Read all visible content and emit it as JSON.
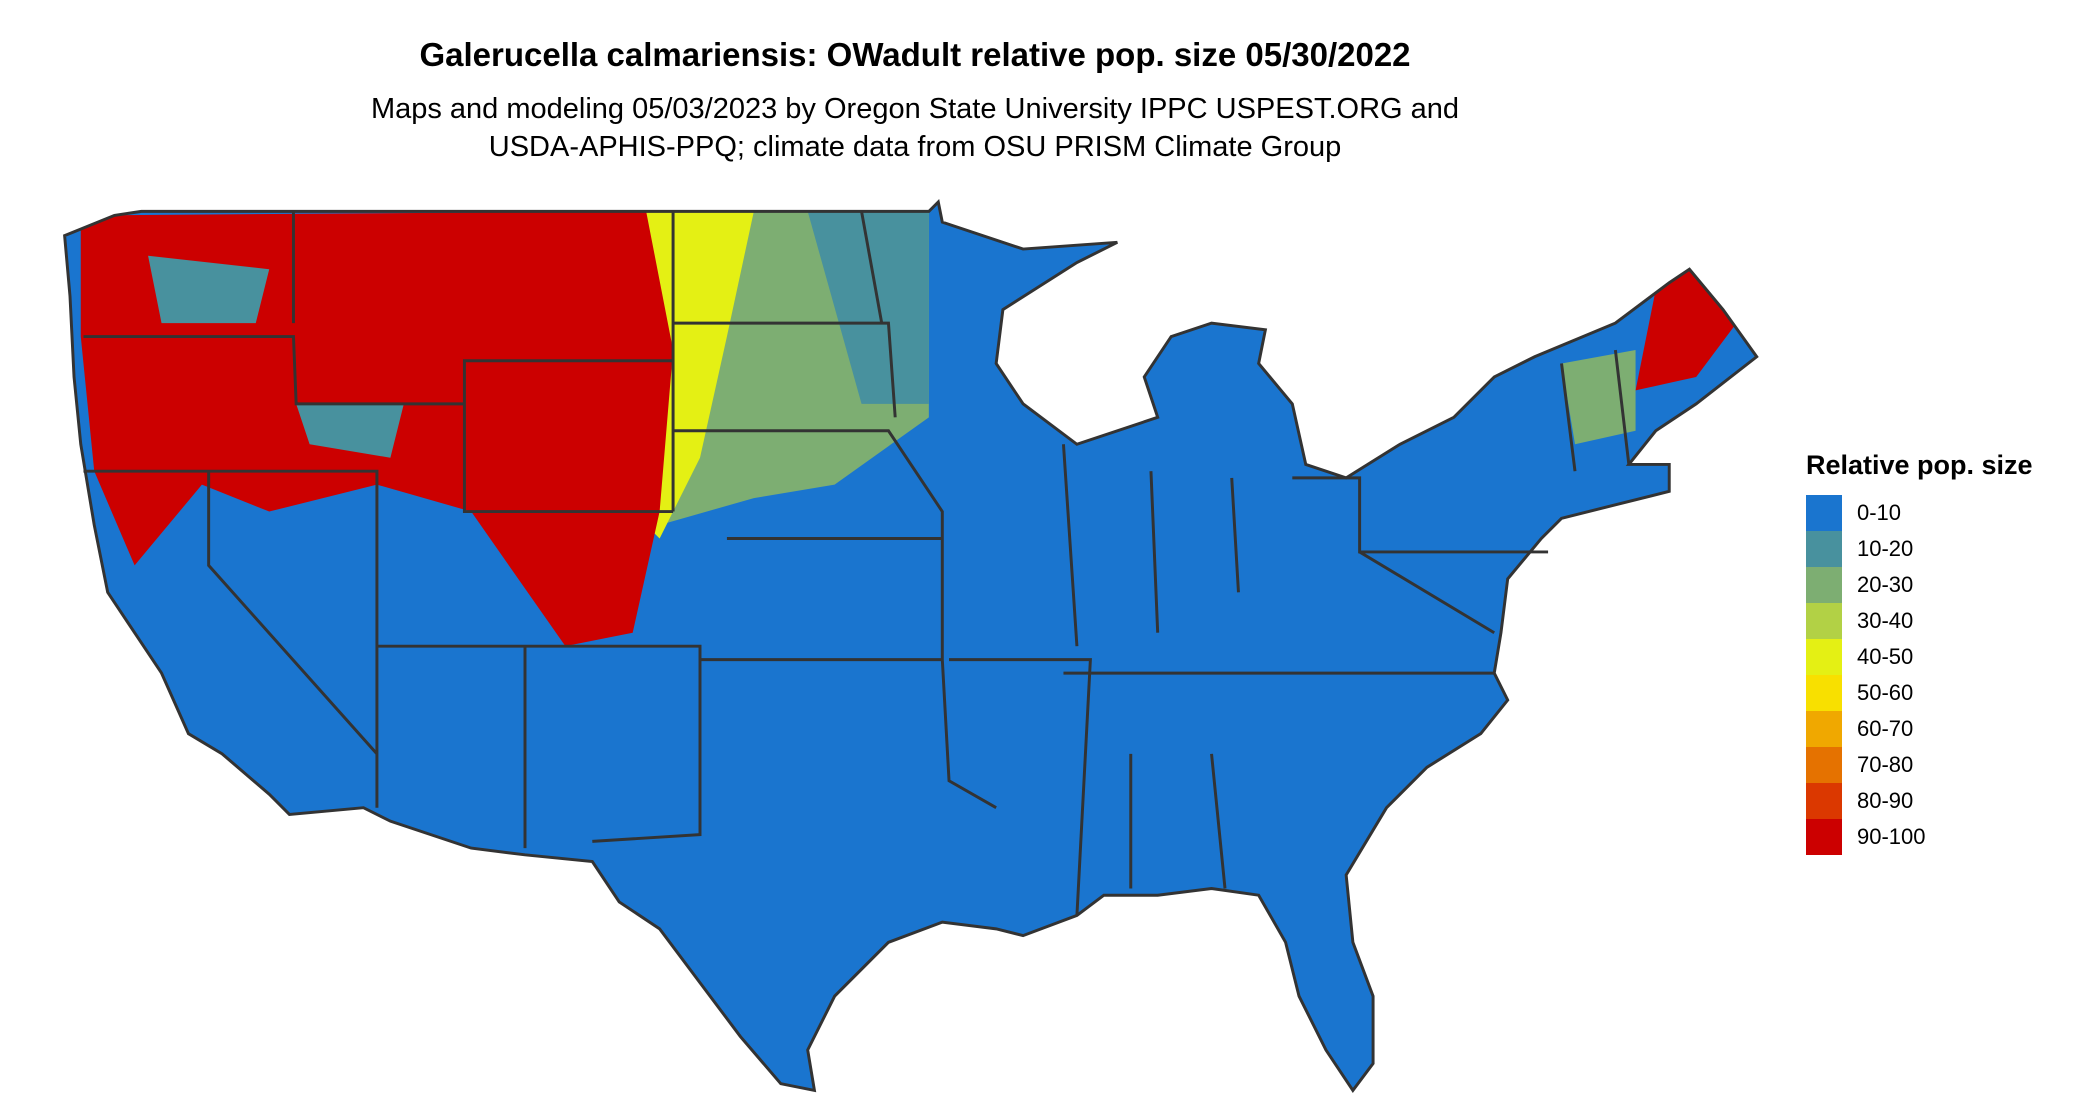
{
  "title": "Galerucella calmariensis: OWadult relative pop. size 05/30/2022",
  "subtitle_line1": "Maps and modeling 05/03/2023 by Oregon State University IPPC USPEST.ORG and",
  "subtitle_line2": "USDA-APHIS-PPQ; climate data from OSU PRISM Climate Group",
  "legend": {
    "title": "Relative pop. size",
    "items": [
      {
        "label": "0-10",
        "color": "#1a75cf"
      },
      {
        "label": "10-20",
        "color": "#48919e"
      },
      {
        "label": "20-30",
        "color": "#7dae72"
      },
      {
        "label": "30-40",
        "color": "#b2d145"
      },
      {
        "label": "40-50",
        "color": "#e4f014"
      },
      {
        "label": "50-60",
        "color": "#f8e000"
      },
      {
        "label": "60-70",
        "color": "#f0a800"
      },
      {
        "label": "70-80",
        "color": "#e57200"
      },
      {
        "label": "80-90",
        "color": "#db3800"
      },
      {
        "label": "90-100",
        "color": "#cc0000"
      }
    ]
  },
  "map": {
    "region": "Contiguous United States",
    "border_color": "#333333"
  }
}
